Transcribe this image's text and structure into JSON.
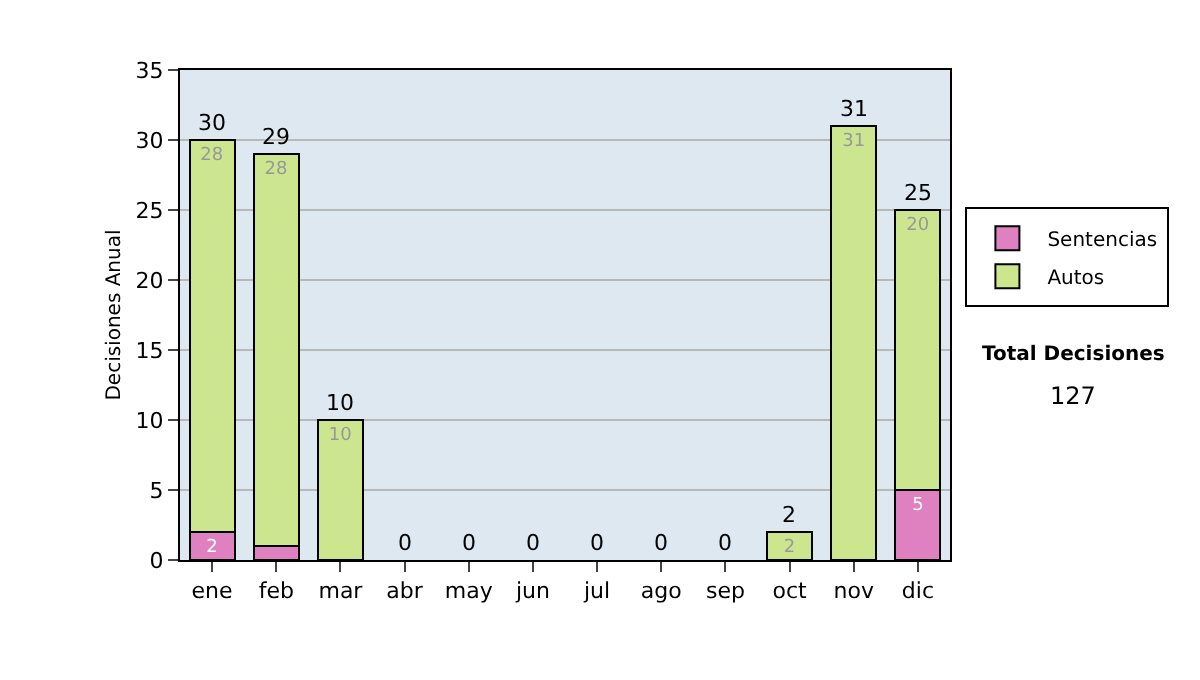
{
  "chart_data": {
    "type": "bar",
    "stacked": true,
    "ylabel": "Decisiones Anual",
    "categories": [
      "ene",
      "feb",
      "mar",
      "abr",
      "may",
      "jun",
      "jul",
      "ago",
      "sep",
      "oct",
      "nov",
      "dic"
    ],
    "series": [
      {
        "name": "Sentencias",
        "color": "#df80c0",
        "values": [
          2,
          1,
          0,
          0,
          0,
          0,
          0,
          0,
          0,
          0,
          0,
          5
        ],
        "value_labels": [
          "2",
          null,
          null,
          null,
          null,
          null,
          null,
          null,
          null,
          null,
          null,
          "5"
        ]
      },
      {
        "name": "Autos",
        "color": "#cce690",
        "values": [
          28,
          28,
          10,
          0,
          0,
          0,
          0,
          0,
          0,
          2,
          31,
          20
        ],
        "value_labels": [
          "28",
          "28",
          "10",
          null,
          null,
          null,
          null,
          null,
          null,
          "2",
          "31",
          "20"
        ]
      }
    ],
    "totals": [
      "30",
      "29",
      "10",
      "0",
      "0",
      "0",
      "0",
      "0",
      "0",
      "2",
      "31",
      "25"
    ],
    "ylim": [
      0,
      35
    ],
    "yticks": [
      0,
      5,
      10,
      15,
      20,
      25,
      30,
      35
    ],
    "grid": "y",
    "legend": "right",
    "annotations": [
      "Total Decisiones",
      "127"
    ]
  }
}
